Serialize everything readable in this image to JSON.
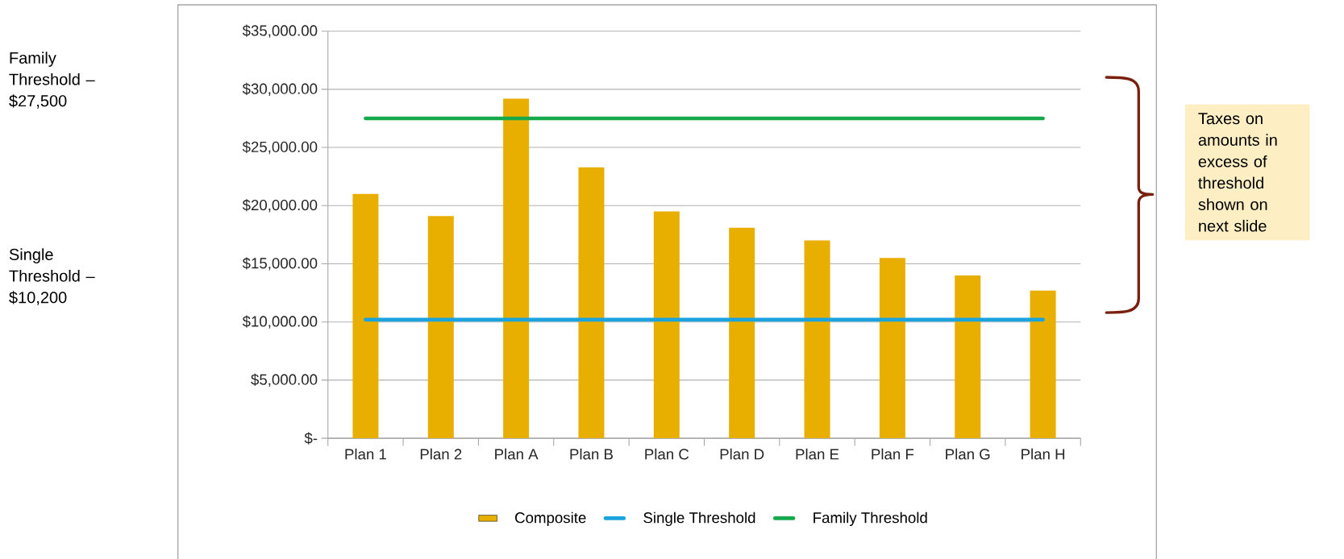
{
  "chart_data": {
    "type": "bar",
    "categories": [
      "Plan 1",
      "Plan 2",
      "Plan A",
      "Plan B",
      "Plan C",
      "Plan D",
      "Plan E",
      "Plan F",
      "Plan G",
      "Plan H"
    ],
    "series": [
      {
        "name": "Composite",
        "type": "bar",
        "color": "#e8ae00",
        "values": [
          21000,
          19100,
          29200,
          23300,
          19500,
          18100,
          17000,
          15500,
          14000,
          12700
        ]
      },
      {
        "name": "Single Threshold",
        "type": "line",
        "color": "#1aa3de",
        "values": [
          10200,
          10200,
          10200,
          10200,
          10200,
          10200,
          10200,
          10200,
          10200,
          10200
        ]
      },
      {
        "name": "Family Threshold",
        "type": "line",
        "color": "#16a84a",
        "values": [
          27500,
          27500,
          27500,
          27500,
          27500,
          27500,
          27500,
          27500,
          27500,
          27500
        ]
      }
    ],
    "ylim": [
      0,
      35000
    ],
    "yticks": [
      {
        "value": 0,
        "label": "$-"
      },
      {
        "value": 5000,
        "label": "$5,000.00"
      },
      {
        "value": 10000,
        "label": "$10,000.00"
      },
      {
        "value": 15000,
        "label": "$15,000.00"
      },
      {
        "value": 20000,
        "label": "$20,000.00"
      },
      {
        "value": 25000,
        "label": "$25,000.00"
      },
      {
        "value": 30000,
        "label": "$30,000.00"
      },
      {
        "value": 35000,
        "label": "$35,000.00"
      }
    ],
    "grid": "y",
    "legend": "bottom",
    "annotations": [
      "Family Threshold – $27,500",
      "Single Threshold – $10,200",
      "Taxes on amounts in excess of threshold shown on next slide"
    ]
  }
}
